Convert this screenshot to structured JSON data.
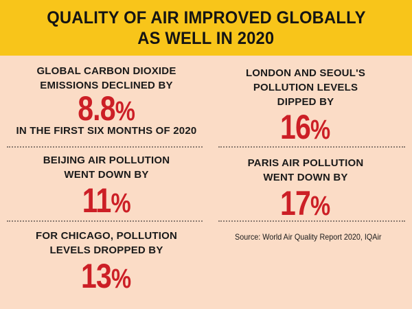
{
  "header": {
    "line1": "QUALITY OF AIR IMPROVED GLOBALLY",
    "line2": "AS WELL IN 2020"
  },
  "facts": {
    "co2": {
      "label1": "GLOBAL CARBON DIOXIDE",
      "label2": "EMISSIONS DECLINED BY",
      "value": "8.8",
      "unit": "%",
      "label3": "IN THE FIRST SIX MONTHS OF 2020"
    },
    "london_seoul": {
      "label1": "LONDON AND SEOUL'S",
      "label2": "POLLUTION LEVELS",
      "label3": "DIPPED BY",
      "value": "16",
      "unit": "%"
    },
    "beijing": {
      "label1": "BEIJING AIR POLLUTION",
      "label2": "WENT DOWN BY",
      "value": "11",
      "unit": "%"
    },
    "paris": {
      "label1": "PARIS AIR POLLUTION",
      "label2": "WENT DOWN BY",
      "value": "17",
      "unit": "%"
    },
    "chicago": {
      "label1": "FOR CHICAGO, POLLUTION",
      "label2": "LEVELS DROPPED BY",
      "value": "13",
      "unit": "%"
    }
  },
  "source": "Source: World Air Quality Report 2020, IQAir",
  "colors": {
    "banner": "#f8c51a",
    "background": "#fbdcc6",
    "highlight": "#cc1f26"
  }
}
